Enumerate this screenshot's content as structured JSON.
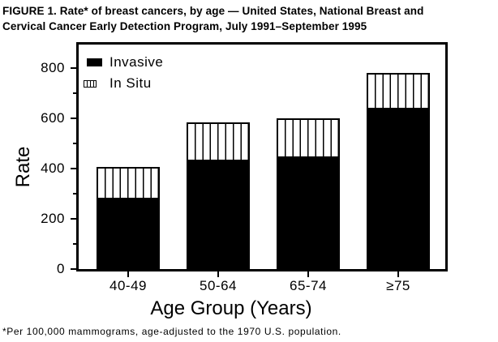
{
  "figure": {
    "title_line1": "FIGURE 1. Rate* of breast cancers, by age — United States, National Breast and",
    "title_line2": "Cervical Cancer Early Detection Program, July 1991–September 1995",
    "footnote": "*Per 100,000 mammograms, age-adjusted to the 1970 U.S. population."
  },
  "axes": {
    "y_title": "Rate",
    "x_title": "Age Group (Years)",
    "y_major_ticks": [
      0,
      200,
      400,
      600,
      800
    ],
    "y_minor_ticks": [
      100,
      300,
      500,
      700
    ]
  },
  "chart_data": {
    "type": "bar",
    "stacked": true,
    "title": "Rate of breast cancers, by age — NBCCEDP, July 1991–September 1995",
    "categories": [
      "40-49",
      "50-64",
      "65-74",
      "≥75"
    ],
    "series": [
      {
        "name": "Invasive",
        "style": "solid-black",
        "values": [
          285,
          435,
          448,
          641
        ]
      },
      {
        "name": "In Situ",
        "style": "vertical-hatch",
        "values": [
          121,
          147,
          151,
          138
        ]
      }
    ],
    "stack_totals": [
      406,
      582,
      599,
      779
    ],
    "xlabel": "Age Group (Years)",
    "ylabel": "Rate",
    "ylim": [
      0,
      900
    ],
    "grid": false,
    "legend_position": "upper-left-inside",
    "units_note": "per 100,000 mammograms, age-adjusted to the 1970 U.S. population"
  },
  "colors": {
    "foreground": "#000000",
    "background": "#ffffff"
  }
}
